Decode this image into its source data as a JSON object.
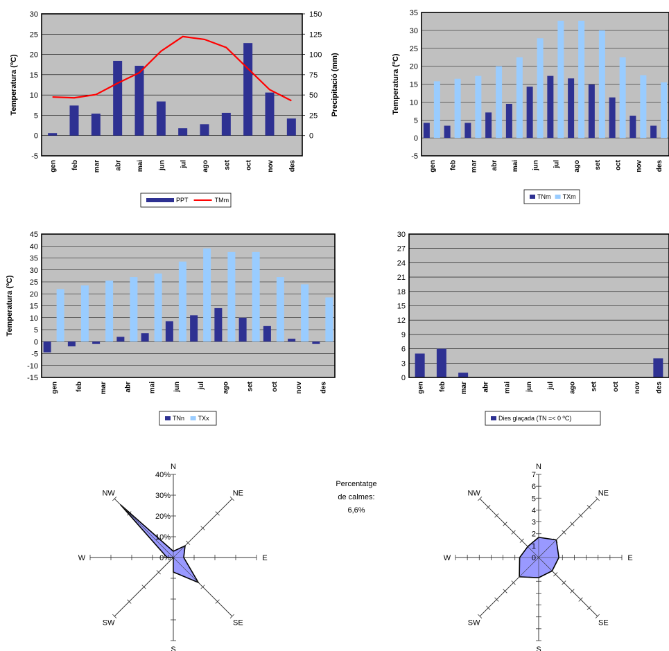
{
  "colors": {
    "plot_bg": "#c0c0c0",
    "dark_bar": "#2e3192",
    "light_bar": "#99ccff",
    "line_red": "#ff0000",
    "rose_fill": "#9999ff"
  },
  "chart_data": [
    {
      "type": "bar+line",
      "categories": [
        "gen",
        "feb",
        "mar",
        "abr",
        "mai",
        "jun",
        "jul",
        "ago",
        "set",
        "oct",
        "nov",
        "des"
      ],
      "ylabel": "Temperatura (ºC)",
      "y2label": "Precipitació (mm)",
      "ylim": [
        -5,
        30
      ],
      "y2lim": [
        -25,
        150
      ],
      "yticks": [
        -5,
        0,
        5,
        10,
        15,
        20,
        25,
        30
      ],
      "y2ticks": [
        0,
        25,
        50,
        75,
        100,
        125,
        150
      ],
      "grid": true,
      "legend": "bottom",
      "series": [
        {
          "name": "PPT",
          "kind": "bar",
          "axis": "y2",
          "values": [
            3,
            37,
            27,
            92,
            86,
            42,
            9,
            14,
            28,
            114,
            53,
            21
          ]
        },
        {
          "name": "TMm",
          "kind": "line",
          "axis": "y",
          "values": [
            9.5,
            9.3,
            10.1,
            12.9,
            15.5,
            20.8,
            24.4,
            23.7,
            21.7,
            16.5,
            11.3,
            8.6
          ]
        }
      ]
    },
    {
      "type": "bar",
      "categories": [
        "gen",
        "feb",
        "mar",
        "abr",
        "mai",
        "jun",
        "jul",
        "ago",
        "set",
        "oct",
        "nov",
        "des"
      ],
      "ylabel": "Temperatura (ºC)",
      "ylim": [
        -5,
        35
      ],
      "yticks": [
        -5,
        0,
        5,
        10,
        15,
        20,
        25,
        30,
        35
      ],
      "grid": true,
      "legend": "bottom",
      "series": [
        {
          "name": "TNm",
          "values": [
            4.2,
            3.4,
            4.2,
            7.1,
            9.5,
            14.3,
            17.3,
            16.6,
            14.9,
            11.3,
            6.2,
            3.4
          ]
        },
        {
          "name": "TXm",
          "values": [
            15.8,
            16.5,
            17.3,
            20.0,
            22.5,
            27.8,
            32.7,
            32.7,
            30.0,
            22.5,
            17.5,
            15.5
          ]
        }
      ]
    },
    {
      "type": "bar",
      "categories": [
        "gen",
        "feb",
        "mar",
        "abr",
        "mai",
        "jun",
        "jul",
        "ago",
        "set",
        "oct",
        "nov",
        "des"
      ],
      "ylabel": "Temperatura (ºC)",
      "ylim": [
        -15,
        45
      ],
      "yticks": [
        -15,
        -10,
        -5,
        0,
        5,
        10,
        15,
        20,
        25,
        30,
        35,
        40,
        45
      ],
      "grid": true,
      "legend": "bottom",
      "series": [
        {
          "name": "TNn",
          "values": [
            -4.5,
            -2.0,
            -1.0,
            2.0,
            3.5,
            8.5,
            11.0,
            14.0,
            10.0,
            6.5,
            1.2,
            -1.0
          ]
        },
        {
          "name": "TXx",
          "values": [
            22.0,
            23.5,
            25.5,
            27.0,
            28.5,
            33.5,
            39.0,
            37.5,
            37.5,
            27.0,
            24.0,
            18.5
          ]
        }
      ]
    },
    {
      "type": "bar",
      "categories": [
        "gen",
        "feb",
        "mar",
        "abr",
        "mai",
        "jun",
        "jul",
        "ago",
        "set",
        "oct",
        "nov",
        "des"
      ],
      "ylim": [
        0,
        30
      ],
      "yticks": [
        0,
        3,
        6,
        9,
        12,
        15,
        18,
        21,
        24,
        27,
        30
      ],
      "grid": true,
      "legend": "bottom",
      "series": [
        {
          "name": "Dies glaçada (TN =< 0 ºC)",
          "values": [
            5,
            6,
            1,
            0,
            0,
            0,
            0,
            0,
            0,
            0,
            0,
            4
          ]
        }
      ]
    },
    {
      "type": "radar",
      "directions": [
        "N",
        "NE",
        "E",
        "SE",
        "S",
        "SW",
        "W",
        "NW"
      ],
      "rlim": [
        0,
        40
      ],
      "rticks": [
        "0%",
        "10%",
        "20%",
        "30%",
        "40%"
      ],
      "values": [
        3,
        8,
        5,
        17,
        7,
        0,
        3,
        36
      ]
    },
    {
      "type": "radar",
      "directions": [
        "N",
        "NE",
        "E",
        "SE",
        "S",
        "SW",
        "W",
        "NW"
      ],
      "rlim": [
        0,
        7
      ],
      "rticks": [
        "0",
        "1",
        "2",
        "3",
        "4",
        "5",
        "6",
        "7"
      ],
      "values": [
        1.7,
        2.1,
        1.7,
        1.6,
        1.7,
        2.3,
        1.6,
        1.3
      ]
    }
  ],
  "calm_note": {
    "line1": "Percentatge",
    "line2": "de calmes:",
    "line3": "6,6%"
  }
}
